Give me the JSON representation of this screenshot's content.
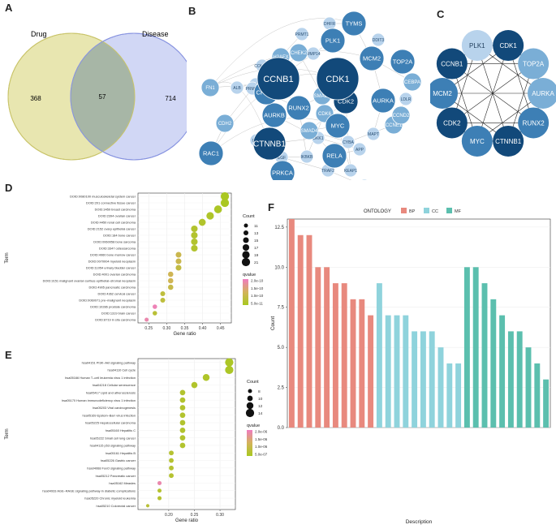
{
  "panels": {
    "A": {
      "letter": "A"
    },
    "B": {
      "letter": "B"
    },
    "C": {
      "letter": "C"
    },
    "D": {
      "letter": "D"
    },
    "E": {
      "letter": "E"
    },
    "F": {
      "letter": "F"
    }
  },
  "colors": {
    "drug_circle": "#e8e6b0",
    "disease_circle": "#c9d0f3",
    "overlap": "#a7b6a6",
    "node_dark": "#12497a",
    "node_mid": "#3d7fb5",
    "node_light": "#7aaed6",
    "node_pale": "#b8d3ec",
    "qvalue_high": "#f07cc0",
    "qvalue_low": "#a8c820",
    "bp": "#e8897e",
    "cc": "#8fd3dc",
    "mf": "#5bbfae"
  },
  "chart_data": [
    {
      "panel": "A",
      "type": "venn",
      "sets": [
        {
          "name": "Drug",
          "only": 368
        },
        {
          "name": "Disease",
          "only": 714
        }
      ],
      "intersection": 57
    },
    {
      "panel": "B",
      "type": "network",
      "nodes": [
        {
          "id": "CCNB1",
          "size": "xl",
          "tone": "dark"
        },
        {
          "id": "CDK1",
          "size": "xl",
          "tone": "dark"
        },
        {
          "id": "CTNNB1",
          "size": "lg",
          "tone": "dark"
        },
        {
          "id": "TYMS",
          "size": "md",
          "tone": "mid"
        },
        {
          "id": "PLK1",
          "size": "md",
          "tone": "mid"
        },
        {
          "id": "MCM2",
          "size": "md",
          "tone": "mid"
        },
        {
          "id": "TOP2A",
          "size": "md",
          "tone": "mid"
        },
        {
          "id": "AURKA",
          "size": "md",
          "tone": "mid"
        },
        {
          "id": "CDK2",
          "size": "md",
          "tone": "dark"
        },
        {
          "id": "RUNX2",
          "size": "md",
          "tone": "mid"
        },
        {
          "id": "AURKB",
          "size": "md",
          "tone": "mid"
        },
        {
          "id": "CHEK1",
          "size": "md",
          "tone": "mid"
        },
        {
          "id": "MYC",
          "size": "md",
          "tone": "mid"
        },
        {
          "id": "RAC1",
          "size": "md",
          "tone": "mid"
        },
        {
          "id": "RELA",
          "size": "md",
          "tone": "mid"
        },
        {
          "id": "PRKCA",
          "size": "md",
          "tone": "mid"
        },
        {
          "id": "CCNE1",
          "size": "sm",
          "tone": "light"
        },
        {
          "id": "CHEK2",
          "size": "sm",
          "tone": "light"
        },
        {
          "id": "H2AFX",
          "size": "sm",
          "tone": "light"
        },
        {
          "id": "SMAD3",
          "size": "sm",
          "tone": "light"
        },
        {
          "id": "SMAD4",
          "size": "sm",
          "tone": "light"
        },
        {
          "id": "CDK6",
          "size": "sm",
          "tone": "light"
        },
        {
          "id": "CCND2",
          "size": "sm",
          "tone": "light"
        },
        {
          "id": "CEBPA",
          "size": "sm",
          "tone": "light"
        },
        {
          "id": "LDLR",
          "size": "xs",
          "tone": "pale"
        },
        {
          "id": "DHFR",
          "size": "xs",
          "tone": "pale"
        },
        {
          "id": "PRMT1",
          "size": "xs",
          "tone": "pale"
        },
        {
          "id": "DDIT3",
          "size": "xs",
          "tone": "pale"
        },
        {
          "id": "MMP14",
          "size": "xs",
          "tone": "pale"
        },
        {
          "id": "COL1A1",
          "size": "xs",
          "tone": "pale"
        },
        {
          "id": "MMP13",
          "size": "xs",
          "tone": "pale"
        },
        {
          "id": "MET",
          "size": "xs",
          "tone": "pale"
        },
        {
          "id": "ALB",
          "size": "xs",
          "tone": "pale"
        },
        {
          "id": "PRMT5",
          "size": "xs",
          "tone": "pale"
        },
        {
          "id": "FN1",
          "size": "sm",
          "tone": "light"
        },
        {
          "id": "CDH2",
          "size": "sm",
          "tone": "light"
        },
        {
          "id": "BAX",
          "size": "xs",
          "tone": "pale"
        },
        {
          "id": "EGF",
          "size": "xs",
          "tone": "pale"
        },
        {
          "id": "DKK1",
          "size": "xs",
          "tone": "pale"
        },
        {
          "id": "IKBKB",
          "size": "xs",
          "tone": "pale"
        },
        {
          "id": "CYBA",
          "size": "xs",
          "tone": "pale"
        },
        {
          "id": "MAPT",
          "size": "xs",
          "tone": "pale"
        },
        {
          "id": "APP",
          "size": "xs",
          "tone": "pale"
        },
        {
          "id": "TRAF2",
          "size": "xs",
          "tone": "pale"
        },
        {
          "id": "KEAP1",
          "size": "xs",
          "tone": "pale"
        },
        {
          "id": "BCL2L1",
          "size": "xs",
          "tone": "pale"
        }
      ]
    },
    {
      "panel": "C",
      "type": "network",
      "nodes": [
        {
          "id": "PLK1",
          "tone": "pale"
        },
        {
          "id": "CDK1",
          "tone": "dark"
        },
        {
          "id": "TOP2A",
          "tone": "light"
        },
        {
          "id": "AURKA",
          "tone": "light"
        },
        {
          "id": "RUNX2",
          "tone": "mid"
        },
        {
          "id": "CTNNB1",
          "tone": "dark"
        },
        {
          "id": "MYC",
          "tone": "mid"
        },
        {
          "id": "CDK2",
          "tone": "dark"
        },
        {
          "id": "MCM2",
          "tone": "mid"
        },
        {
          "id": "CCNB1",
          "tone": "dark"
        }
      ]
    },
    {
      "panel": "D",
      "type": "scatter",
      "xlabel": "Gene ratio",
      "ylabel": "Term",
      "xlim": [
        0.22,
        0.48
      ],
      "xticks": [
        "0.25",
        "0.30",
        "0.35",
        "0.40",
        "0.45"
      ],
      "xtick_values": [
        0.25,
        0.3,
        0.35,
        0.4,
        0.45
      ],
      "legend": {
        "size_title": "Count",
        "size_labels": [
          "11",
          "13",
          "15",
          "17",
          "19",
          "21"
        ],
        "size_values": [
          11,
          13,
          15,
          17,
          19,
          21
        ],
        "color_title": "qvalue",
        "color_labels": [
          "2.0e-10",
          "1.5e-10",
          "1.0e-10",
          "5.0e-11"
        ]
      },
      "points": [
        {
          "term": "DOID:0080100 musculoskeletal system cancer",
          "x": 0.462,
          "count": 21,
          "q": 0.02
        },
        {
          "term": "DOID:201 connective tissue cancer",
          "x": 0.462,
          "count": 21,
          "q": 0.02
        },
        {
          "term": "DOID:3459 breast carcinoma",
          "x": 0.443,
          "count": 20,
          "q": 0.05
        },
        {
          "term": "DOID:2394 ovarian cancer",
          "x": 0.421,
          "count": 19,
          "q": 0.08
        },
        {
          "term": "DOID:4450 renal cell carcinoma",
          "x": 0.399,
          "count": 18,
          "q": 0.1
        },
        {
          "term": "DOID:2152 ovary epithelial cancer",
          "x": 0.377,
          "count": 17,
          "q": 0.12
        },
        {
          "term": "DOID:184 bone cancer",
          "x": 0.377,
          "count": 17,
          "q": 0.12
        },
        {
          "term": "DOID:0060058 bone sarcoma",
          "x": 0.377,
          "count": 17,
          "q": 0.12
        },
        {
          "term": "DOID:3347 osteosarcoma",
          "x": 0.377,
          "count": 17,
          "q": 0.12
        },
        {
          "term": "DOID:4960 bone marrow cancer",
          "x": 0.333,
          "count": 15,
          "q": 0.4
        },
        {
          "term": "DOID:0070004 myeloid neoplasm",
          "x": 0.333,
          "count": 15,
          "q": 0.4
        },
        {
          "term": "DOID:11054 urinary bladder cancer",
          "x": 0.333,
          "count": 15,
          "q": 0.3
        },
        {
          "term": "DOID:4001 ovarian carcinoma",
          "x": 0.311,
          "count": 14,
          "q": 0.45
        },
        {
          "term": "DOID:3151 malignant ovarian surface epithelial–stromal neoplasm",
          "x": 0.311,
          "count": 14,
          "q": 0.45
        },
        {
          "term": "DOID:4905 pancreatic carcinoma",
          "x": 0.311,
          "count": 14,
          "q": 0.35
        },
        {
          "term": "DOID:4362 cervical cancer",
          "x": 0.289,
          "count": 13,
          "q": 0.25
        },
        {
          "term": "DOID:0060071 pre–malignant neoplasm",
          "x": 0.289,
          "count": 13,
          "q": 0.25
        },
        {
          "term": "DOID:10286 prostate carcinoma",
          "x": 0.267,
          "count": 12,
          "q": 0.95
        },
        {
          "term": "DOID:1319 brain cancer",
          "x": 0.267,
          "count": 12,
          "q": 0.2
        },
        {
          "term": "DOID:8719 in situ carcinoma",
          "x": 0.244,
          "count": 11,
          "q": 0.9
        }
      ]
    },
    {
      "panel": "E",
      "type": "scatter",
      "xlabel": "Gene ratio",
      "ylabel": "Term",
      "xlim": [
        0.14,
        0.33
      ],
      "xticks": [
        "0.20",
        "0.25",
        "0.30"
      ],
      "xtick_values": [
        0.2,
        0.25,
        0.3
      ],
      "legend": {
        "size_title": "Count",
        "size_labels": [
          "8",
          "10",
          "12",
          "14"
        ],
        "size_values": [
          8,
          10,
          12,
          14
        ],
        "color_title": "qvalue",
        "color_labels": [
          "2.0e-06",
          "1.5e-06",
          "1.0e-06",
          "5.0e-07"
        ]
      },
      "points": [
        {
          "term": "hsa04151 PI3K–Akt signaling pathway",
          "x": 0.318,
          "count": 14,
          "q": 0.05
        },
        {
          "term": "hsa04110 Cell cycle",
          "x": 0.318,
          "count": 14,
          "q": 0.05
        },
        {
          "term": "hsa05166 Human T–cell leukemia virus 1 infection",
          "x": 0.273,
          "count": 12,
          "q": 0.08
        },
        {
          "term": "hsa04218 Cellular senescence",
          "x": 0.25,
          "count": 11,
          "q": 0.1
        },
        {
          "term": "hsa05417 Lipid and atherosclerosis",
          "x": 0.227,
          "count": 10,
          "q": 0.12
        },
        {
          "term": "hsa05170 Human immunodeficiency virus 1 infection",
          "x": 0.227,
          "count": 10,
          "q": 0.12
        },
        {
          "term": "hsa05203 Viral carcinogenesis",
          "x": 0.227,
          "count": 10,
          "q": 0.12
        },
        {
          "term": "hsa05169 Epstein–Barr virus infection",
          "x": 0.227,
          "count": 10,
          "q": 0.12
        },
        {
          "term": "hsa05225 Hepatocellular carcinoma",
          "x": 0.227,
          "count": 10,
          "q": 0.12
        },
        {
          "term": "hsa05160 Hepatitis C",
          "x": 0.227,
          "count": 10,
          "q": 0.12
        },
        {
          "term": "hsa05222 Small cell lung cancer",
          "x": 0.227,
          "count": 10,
          "q": 0.12
        },
        {
          "term": "hsa04115 p53 signaling pathway",
          "x": 0.227,
          "count": 10,
          "q": 0.12
        },
        {
          "term": "hsa05161 Hepatitis B",
          "x": 0.205,
          "count": 9,
          "q": 0.15
        },
        {
          "term": "hsa05226 Gastric cancer",
          "x": 0.205,
          "count": 9,
          "q": 0.15
        },
        {
          "term": "hsa04068 FoxO signaling pathway",
          "x": 0.205,
          "count": 9,
          "q": 0.15
        },
        {
          "term": "hsa05212 Pancreatic cancer",
          "x": 0.205,
          "count": 9,
          "q": 0.15
        },
        {
          "term": "hsa05162 Measles",
          "x": 0.182,
          "count": 8,
          "q": 0.9
        },
        {
          "term": "hsa04933 AGE–RAGE signaling pathway in diabetic complications",
          "x": 0.182,
          "count": 8,
          "q": 0.15
        },
        {
          "term": "hsa05220 Chronic myeloid leukemia",
          "x": 0.182,
          "count": 8,
          "q": 0.15
        },
        {
          "term": "hsa05210 Colorectal cancer",
          "x": 0.159,
          "count": 7,
          "q": 0.2
        }
      ]
    },
    {
      "panel": "F",
      "type": "bar",
      "xlabel": "Description",
      "ylabel": "Count",
      "ylim": [
        0,
        13
      ],
      "yticks": [
        "0.0",
        "2.5",
        "5.0",
        "7.5",
        "10.0",
        "12.5"
      ],
      "ytick_values": [
        0,
        2.5,
        5,
        7.5,
        10,
        12.5
      ],
      "legend_title": "ONTOLOGY",
      "legend": [
        "BP",
        "CC",
        "MF"
      ],
      "values": [
        13,
        12,
        12,
        10,
        10,
        9,
        9,
        8,
        8,
        7,
        9,
        7,
        7,
        7,
        6,
        6,
        6,
        5,
        4,
        4,
        10,
        10,
        9,
        8,
        7,
        6,
        6,
        5,
        4,
        3
      ],
      "groups": [
        "BP",
        "BP",
        "BP",
        "BP",
        "BP",
        "BP",
        "BP",
        "BP",
        "BP",
        "BP",
        "CC",
        "CC",
        "CC",
        "CC",
        "CC",
        "CC",
        "CC",
        "CC",
        "CC",
        "CC",
        "MF",
        "MF",
        "MF",
        "MF",
        "MF",
        "MF",
        "MF",
        "MF",
        "MF",
        "MF"
      ]
    }
  ]
}
